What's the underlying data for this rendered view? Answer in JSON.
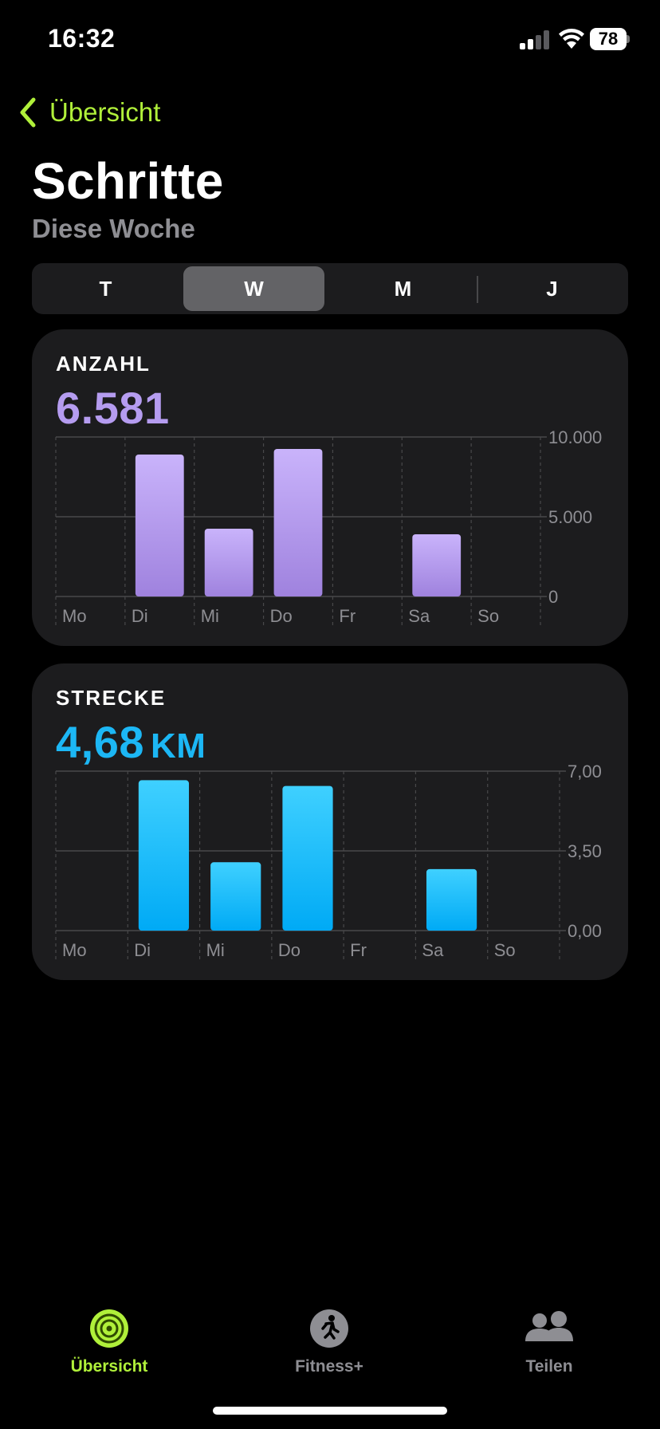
{
  "status_bar": {
    "time": "16:32",
    "battery": "78"
  },
  "nav": {
    "back_label": "Übersicht"
  },
  "header": {
    "title": "Schritte",
    "subtitle": "Diese Woche"
  },
  "segments": {
    "items": [
      "T",
      "W",
      "M",
      "J"
    ],
    "selected": "W"
  },
  "steps_card": {
    "label": "ANZAHL",
    "value": "6.581",
    "color": "#b59cf0"
  },
  "distance_card": {
    "label": "STRECKE",
    "value": "4,68",
    "unit": "KM",
    "color": "#1cb7f5"
  },
  "tabs": [
    {
      "label": "Übersicht",
      "icon": "activity-rings-icon",
      "active": true
    },
    {
      "label": "Fitness+",
      "icon": "running-figure-icon",
      "active": false
    },
    {
      "label": "Teilen",
      "icon": "people-icon",
      "active": false
    }
  ],
  "colors": {
    "accent": "#b0f03a",
    "steps": "#b59cf0",
    "distance": "#1cb7f5",
    "card_bg": "#1c1c1e"
  },
  "chart_data": [
    {
      "type": "bar",
      "categories": [
        "Mo",
        "Di",
        "Mi",
        "Do",
        "Fr",
        "Sa",
        "So"
      ],
      "values": [
        0,
        8900,
        4250,
        9250,
        0,
        3900,
        0
      ],
      "yticks": [
        "10.000",
        "5.000",
        "0"
      ],
      "ylim": [
        0,
        10000
      ],
      "title": "ANZAHL"
    },
    {
      "type": "bar",
      "categories": [
        "Mo",
        "Di",
        "Mi",
        "Do",
        "Fr",
        "Sa",
        "So"
      ],
      "values": [
        0,
        6.6,
        3.0,
        6.35,
        0,
        2.7,
        0
      ],
      "yticks": [
        "7,00",
        "3,50",
        "0,00"
      ],
      "ylim": [
        0,
        7
      ],
      "title": "STRECKE"
    }
  ]
}
